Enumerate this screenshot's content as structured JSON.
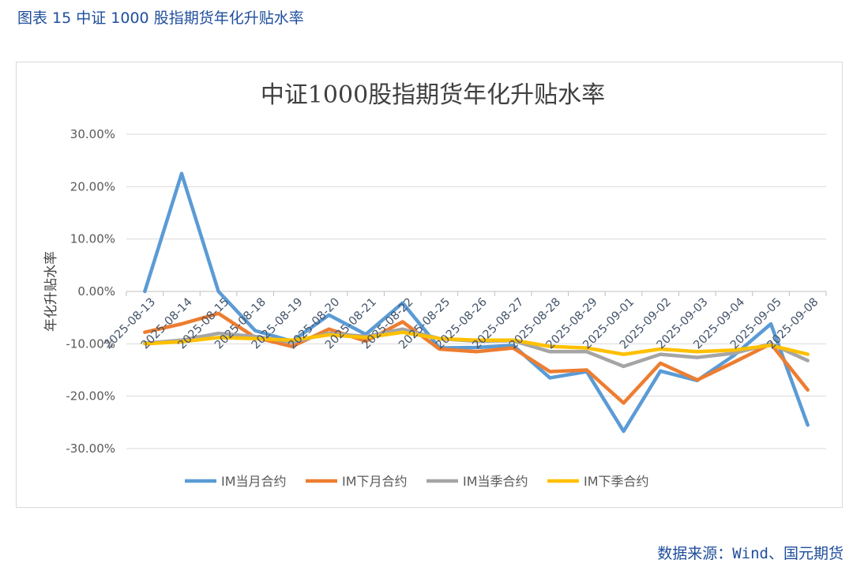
{
  "figure_title": "图表 15  中证 1000 股指期货年化升贴水率",
  "source": "数据来源：Wind、国元期货",
  "chart_data": {
    "type": "line",
    "title": "中证1000股指期货年化升贴水率",
    "ylabel": "年化升贴水率",
    "xlabel": "",
    "ylim": [
      -30,
      30
    ],
    "yticks": [
      30,
      20,
      10,
      0,
      -10,
      -20,
      -30
    ],
    "ytick_labels": [
      "30.00%",
      "20.00%",
      "10.00%",
      "0.00%",
      "-10.00%",
      "-20.00%",
      "-30.00%"
    ],
    "grid": true,
    "legend": "bottom",
    "categories": [
      "2025-08-13",
      "2025-08-14",
      "2025-08-15",
      "2025-08-18",
      "2025-08-19",
      "2025-08-20",
      "2025-08-21",
      "2025-08-22",
      "2025-08-25",
      "2025-08-26",
      "2025-08-27",
      "2025-08-28",
      "2025-08-29",
      "2025-09-01",
      "2025-09-02",
      "2025-09-03",
      "2025-09-04",
      "2025-09-05",
      "2025-09-08"
    ],
    "series": [
      {
        "name": "IM当月合约",
        "color": "#5b9bd5",
        "values": [
          0,
          22.5,
          0,
          -7.5,
          -9.5,
          -4.5,
          -8.2,
          -2.2,
          -10.8,
          -10.7,
          -10.3,
          -16.5,
          -15.3,
          -26.7,
          -15.2,
          -17.0,
          -12.2,
          -6.2,
          -25.5
        ]
      },
      {
        "name": "IM下月合约",
        "color": "#ed7d31",
        "values": [
          -7.8,
          -6.2,
          -4.2,
          -8.8,
          -10.5,
          -7.2,
          -9.5,
          -5.8,
          -11.0,
          -11.5,
          -10.8,
          -15.3,
          -15.0,
          -21.3,
          -13.7,
          -16.9,
          -13.5,
          -10.0,
          -18.8
        ]
      },
      {
        "name": "IM当季合约",
        "color": "#a5a5a5",
        "values": [
          -9.9,
          -9.3,
          -8.0,
          -8.6,
          -9.7,
          -8.0,
          -8.6,
          -7.2,
          -9.0,
          -9.5,
          -9.4,
          -11.5,
          -11.5,
          -14.3,
          -12.0,
          -12.6,
          -11.8,
          -10.0,
          -13.2
        ]
      },
      {
        "name": "IM下季合约",
        "color": "#ffc000",
        "values": [
          -10.0,
          -9.6,
          -8.8,
          -9.0,
          -9.3,
          -8.3,
          -8.8,
          -7.8,
          -9.0,
          -9.3,
          -9.3,
          -10.5,
          -10.8,
          -12.0,
          -11.0,
          -11.5,
          -11.2,
          -10.3,
          -12.0
        ]
      }
    ]
  }
}
